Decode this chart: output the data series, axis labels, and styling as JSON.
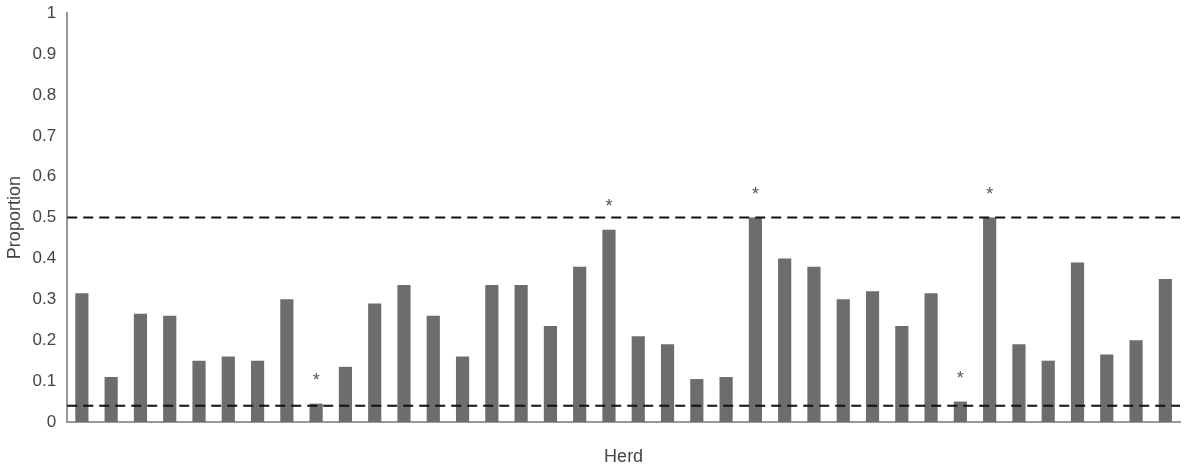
{
  "chart_data": {
    "type": "bar",
    "xlabel": "Herd",
    "ylabel": "Proportion",
    "categories": [
      null,
      null,
      null,
      null,
      null,
      null,
      null,
      null,
      null,
      null,
      null,
      null,
      null,
      null,
      null,
      null,
      null,
      null,
      null,
      null,
      null,
      null,
      null,
      null,
      null,
      null,
      null,
      null,
      null,
      null,
      null,
      null,
      null,
      null,
      null,
      null,
      null,
      null
    ],
    "values": [
      0.315,
      0.11,
      0.265,
      0.26,
      0.15,
      0.16,
      0.15,
      0.3,
      0.045,
      0.135,
      0.29,
      0.335,
      0.26,
      0.16,
      0.335,
      0.335,
      0.235,
      0.38,
      0.47,
      0.21,
      0.19,
      0.105,
      0.11,
      0.5,
      0.4,
      0.38,
      0.3,
      0.32,
      0.235,
      0.315,
      0.05,
      0.5,
      0.19,
      0.15,
      0.39,
      0.165,
      0.2,
      0.35
    ],
    "value_labels": [
      null,
      null,
      null,
      null,
      null,
      null,
      null,
      null,
      "*",
      null,
      null,
      null,
      null,
      null,
      null,
      null,
      null,
      null,
      "*",
      null,
      null,
      null,
      null,
      "*",
      null,
      null,
      null,
      null,
      null,
      null,
      "*",
      "*",
      null,
      null,
      null,
      null,
      null,
      null
    ],
    "color": "#6d6d70",
    "ylim": [
      0,
      1
    ],
    "yticks": [
      0,
      0.1,
      0.2,
      0.3,
      0.4,
      0.5,
      0.6,
      0.7,
      0.8,
      0.9,
      1
    ],
    "ref_lines": [
      {
        "axis": "y",
        "value": 0.5,
        "color": "#111111",
        "line_style": "dashed"
      },
      {
        "axis": "y",
        "value": 0.04,
        "color": "#111111",
        "line_style": "dashed"
      }
    ],
    "grid": false,
    "legend": false
  }
}
